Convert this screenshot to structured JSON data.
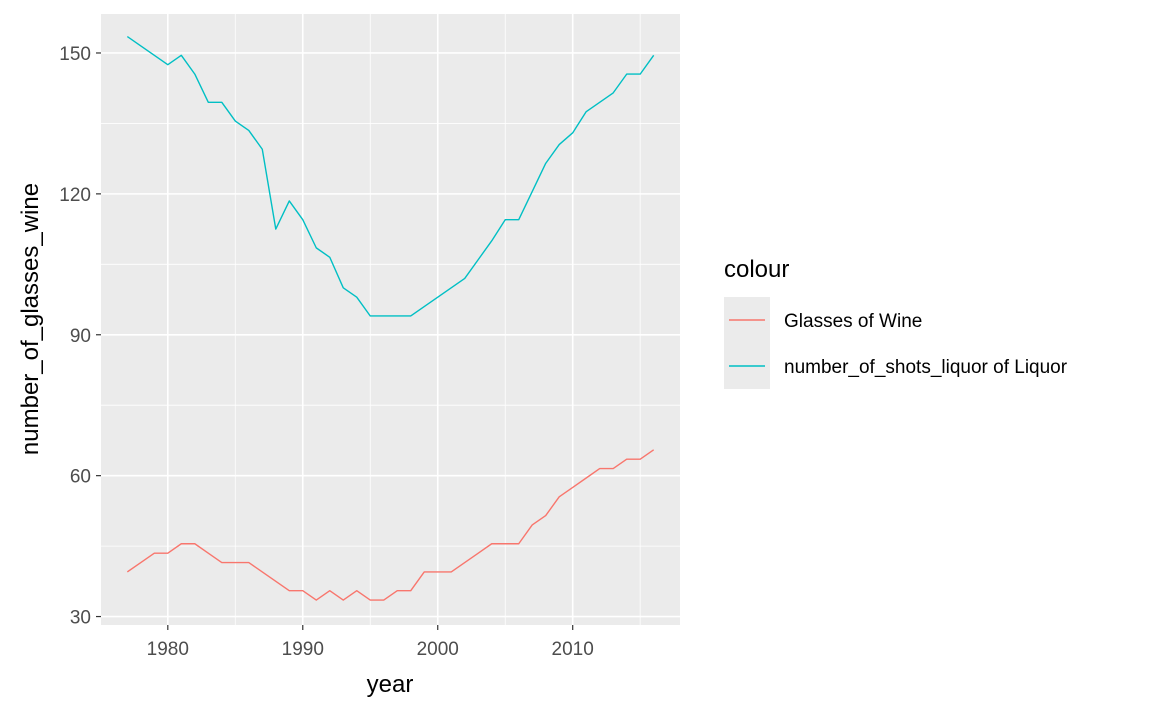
{
  "chart_data": {
    "type": "line",
    "title": "",
    "xlabel": "year",
    "ylabel": "number_of_glasses_wine",
    "xlim": [
      1975.05,
      2017.95
    ],
    "ylim": [
      28.2,
      158.3
    ],
    "x_ticks": [
      1980,
      1990,
      2000,
      2010
    ],
    "y_ticks": [
      30,
      60,
      90,
      120,
      150
    ],
    "grid": true,
    "legend": {
      "title": "colour",
      "position": "right"
    },
    "x": [
      1977,
      1978,
      1979,
      1980,
      1981,
      1982,
      1983,
      1984,
      1985,
      1986,
      1987,
      1988,
      1989,
      1990,
      1991,
      1992,
      1993,
      1994,
      1995,
      1996,
      1997,
      1998,
      1999,
      2000,
      2001,
      2002,
      2003,
      2004,
      2005,
      2006,
      2007,
      2008,
      2009,
      2010,
      2011,
      2012,
      2013,
      2014,
      2015,
      2016
    ],
    "series": [
      {
        "name": "Glasses of Wine",
        "color": "#F8766D",
        "values": [
          39.5,
          41.5,
          43.5,
          43.5,
          45.5,
          45.5,
          43.5,
          41.5,
          41.5,
          41.5,
          39.5,
          37.5,
          35.5,
          35.5,
          33.5,
          35.5,
          33.5,
          35.5,
          33.5,
          33.5,
          35.5,
          35.5,
          39.5,
          39.5,
          39.5,
          41.5,
          43.5,
          45.5,
          45.5,
          45.5,
          49.5,
          51.5,
          55.5,
          57.5,
          59.5,
          61.5,
          61.5,
          63.5,
          63.5,
          65.5
        ]
      },
      {
        "name": "number_of_shots_liquor of Liquor",
        "color": "#00BFC4",
        "values": [
          153.5,
          151.5,
          149.5,
          147.5,
          149.5,
          145.5,
          139.5,
          139.5,
          135.5,
          133.5,
          129.5,
          112.5,
          118.5,
          114.5,
          108.5,
          106.5,
          100.0,
          98.0,
          94.0,
          94.0,
          94.0,
          94.0,
          96.0,
          98.0,
          100.0,
          102.0,
          106.0,
          110.0,
          114.5,
          114.5,
          120.5,
          126.5,
          130.5,
          133.0,
          137.5,
          139.5,
          141.5,
          145.5,
          145.5,
          149.5
        ]
      }
    ]
  }
}
